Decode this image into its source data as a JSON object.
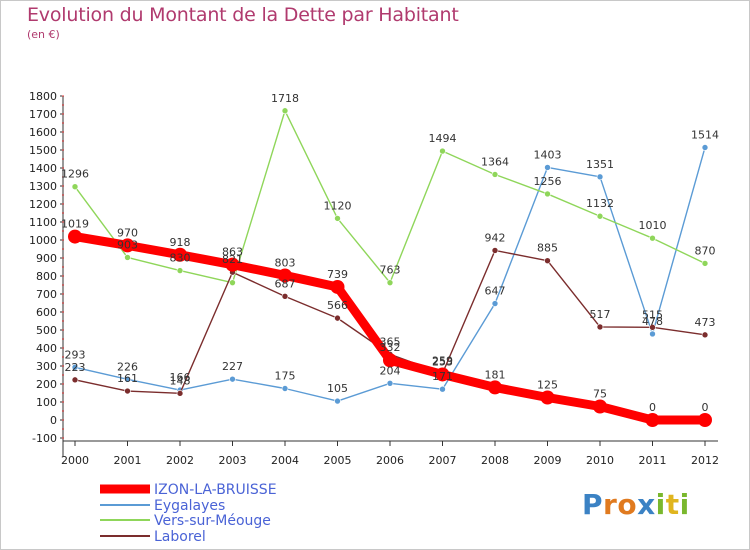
{
  "header": {
    "title": "Evolution du Montant de la Dette par Habitant",
    "subtitle": "(en €)"
  },
  "brand": {
    "letters": [
      "P",
      "r",
      "o",
      "x",
      "i",
      "t",
      "i"
    ],
    "colors": [
      "#3b82c4",
      "#e07a1f",
      "#e07a1f",
      "#3b82c4",
      "#7ab82e",
      "#e0b51f",
      "#7ab82e"
    ]
  },
  "chart_data": {
    "type": "line",
    "title": "Evolution du Montant de la Dette par Habitant",
    "ylabel": "(en €)",
    "x": [
      "2000",
      "2001",
      "2002",
      "2003",
      "2004",
      "2005",
      "2006",
      "2007",
      "2008",
      "2009",
      "2010",
      "2011",
      "2012"
    ],
    "ylim": [
      -100,
      1800
    ],
    "yticks": [
      -100,
      0,
      100,
      200,
      300,
      400,
      500,
      600,
      700,
      800,
      900,
      1000,
      1100,
      1200,
      1300,
      1400,
      1500,
      1600,
      1700,
      1800
    ],
    "grid": false,
    "legend_position": "bottom-left",
    "series": [
      {
        "name": "IZON-LA-BRUISSE",
        "color": "#ff0000",
        "values": [
          1019,
          970,
          918,
          863,
          803,
          739,
          332,
          253,
          181,
          125,
          75,
          0,
          0
        ]
      },
      {
        "name": "Eygalayes",
        "color": "#5b9bd5",
        "values": [
          293,
          226,
          166,
          227,
          175,
          105,
          204,
          171,
          647,
          1403,
          1351,
          478,
          1514
        ]
      },
      {
        "name": "Vers-sur-Méouge",
        "color": "#8fd65a",
        "values": [
          1296,
          903,
          830,
          763,
          null,
          1120,
          763,
          1494,
          1364,
          1256,
          1132,
          1010,
          870
        ]
      },
      {
        "name": "Laborel",
        "color": "#7b2d2d",
        "values": [
          223,
          161,
          148,
          821,
          687,
          566,
          365,
          259,
          942,
          885,
          517,
          515,
          473
        ]
      }
    ],
    "point_labels": {
      "IZON-LA-BRUISSE": [
        "1019",
        "970",
        "918",
        "863",
        "803",
        "739",
        "332",
        "253",
        "181",
        "125",
        "75",
        "0",
        "0"
      ],
      "Eygalayes": [
        "293",
        "226",
        "166",
        "227",
        "175",
        "105",
        "204",
        "171",
        "647",
        "1403",
        "1351",
        "478",
        "1514"
      ],
      "Vers-sur-Méouge": [
        "1296",
        "903",
        "830",
        "",
        "1718",
        "1120",
        "763",
        "1494",
        "1364",
        "1256",
        "1132",
        "1010",
        "870"
      ],
      "Laborel": [
        "223",
        "161",
        "148",
        "821",
        "687",
        "566",
        "365",
        "259",
        "942",
        "885",
        "517",
        "515",
        "473"
      ]
    },
    "vers_extra": {
      "x": "2004",
      "value": 1718
    }
  }
}
